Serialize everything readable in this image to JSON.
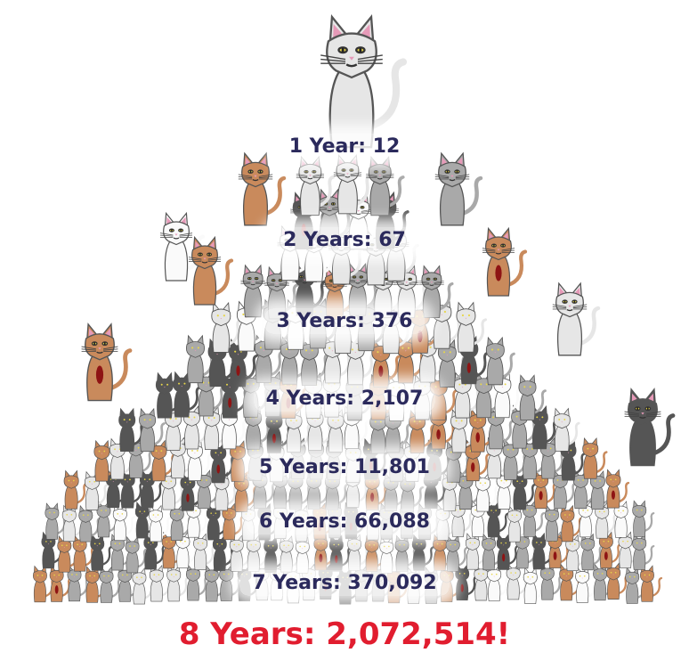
{
  "colors": {
    "label_text": "#2b2a5c",
    "final_text": "#e11d2f",
    "cat_orange": "#c98a5c",
    "cat_gray": "#a9a9a9",
    "cat_dark": "#555555",
    "cat_light": "#e6e6e6",
    "cat_white": "#fafafa",
    "cat_red_chest": "#8e1414",
    "eye": "#e8d64a",
    "nose": "#e69ab8"
  },
  "icons": {
    "big_cat": "gray-cat-icon",
    "cat": "cat-icon"
  },
  "labels": {
    "year1": "1 Year: 12",
    "year2": "2 Years: 67",
    "year3": "3 Years: 376",
    "year4": "4 Years: 2,107",
    "year5": "5 Years: 11,801",
    "year6": "6 Years: 66,088",
    "year7": "7 Years: 370,092",
    "year8": "8 Years: 2,072,514!"
  }
}
